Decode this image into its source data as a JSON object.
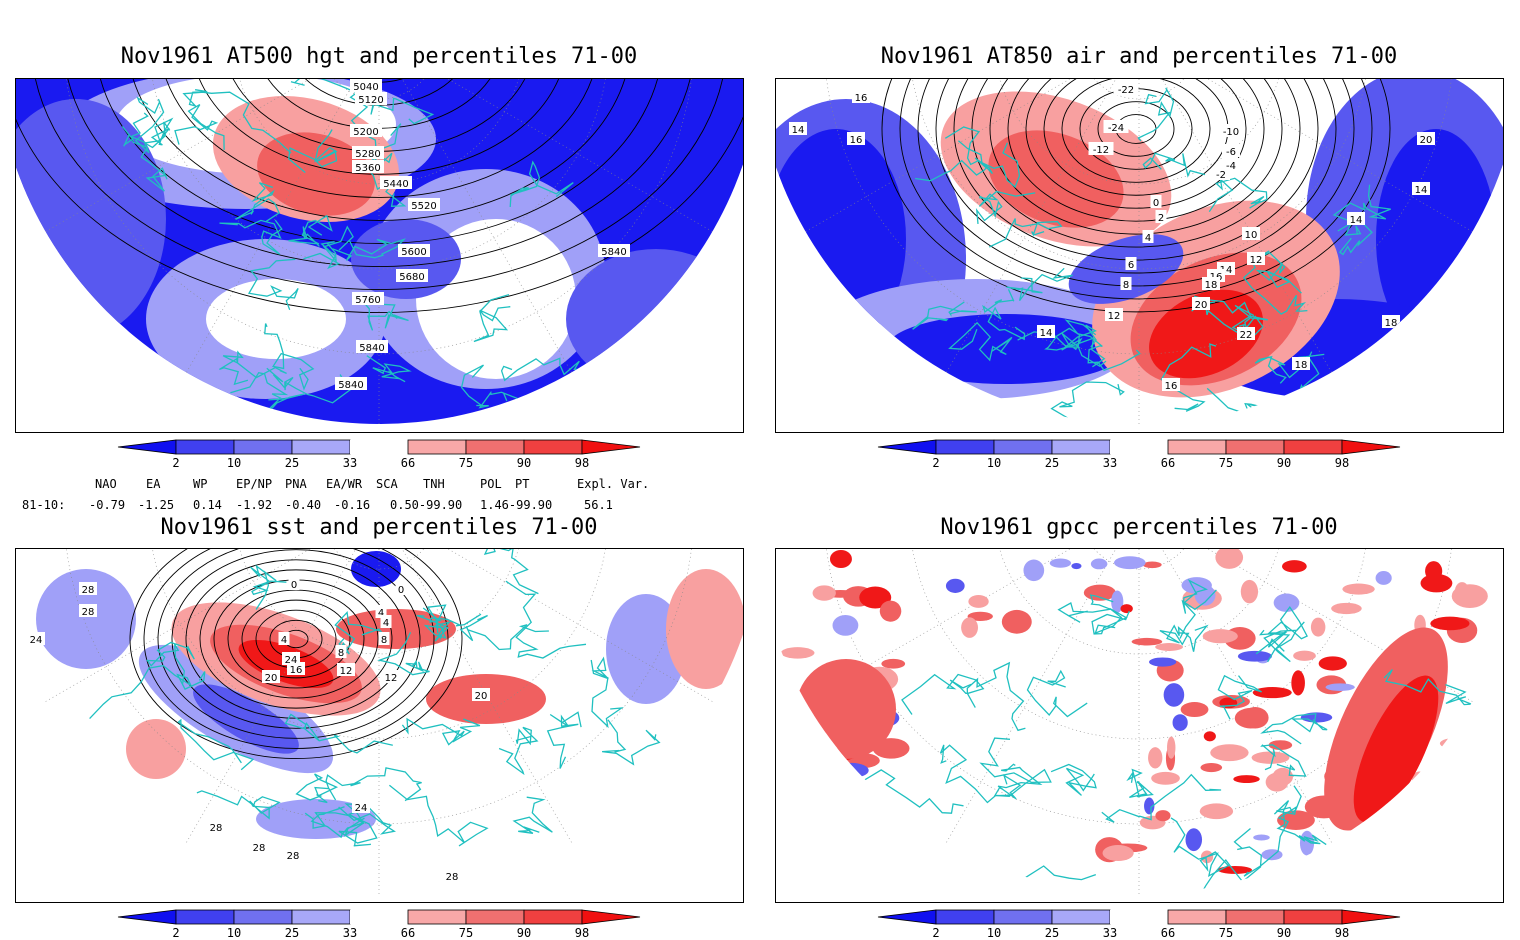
{
  "panels": [
    {
      "id": "hgt500",
      "title": "Nov1961 AT500 hgt and percentiles 71-00",
      "contour_labels": [
        "5040",
        "5120",
        "5200",
        "5280",
        "5360",
        "5440",
        "5520",
        "5600",
        "5680",
        "5760",
        "5840",
        "5840",
        "5840"
      ]
    },
    {
      "id": "air850",
      "title": "Nov1961 AT850 air and percentiles 71-00",
      "contour_labels": [
        "16",
        "16",
        "14",
        "-22",
        "-24",
        "-12",
        "-10",
        "-6",
        "-4",
        "-2",
        "0",
        "2",
        "4",
        "6",
        "8",
        "10",
        "12",
        "14",
        "16",
        "18",
        "20",
        "22",
        "12",
        "14",
        "16",
        "18",
        "20",
        "14",
        "14",
        "18"
      ]
    },
    {
      "id": "sst",
      "title": "Nov1961 sst and percentiles 71-00",
      "contour_labels": [
        "28",
        "28",
        "24",
        "24",
        "0",
        "0",
        "4",
        "4",
        "4",
        "8",
        "8",
        "12",
        "12",
        "16",
        "20",
        "20",
        "24",
        "28",
        "28",
        "28",
        "28"
      ]
    },
    {
      "id": "gpcc",
      "title": "Nov1961 gpcc percentiles 71-00",
      "contour_labels": []
    }
  ],
  "colorbar": {
    "ticks": [
      "2",
      "10",
      "25",
      "33",
      "66",
      "75",
      "90",
      "98"
    ],
    "colors": [
      "#1010f0",
      "#4040f0",
      "#7070f0",
      "#a8a8f8",
      "#ffffff",
      "#f8a8a8",
      "#f07070",
      "#f04040",
      "#f01010"
    ]
  },
  "indices": {
    "header": [
      "NAO",
      "EA",
      "WP",
      "EP/NP",
      "PNA",
      "EA/WR",
      "SCA",
      "TNH",
      "POL",
      "PT",
      "Expl. Var."
    ],
    "row_label": "81-10:",
    "values": [
      "-0.79",
      "-1.25",
      "0.14",
      "-1.92",
      "-0.40",
      "-0.16",
      "0.50-99.90",
      "1.46-99.90",
      "56.1"
    ]
  },
  "style": {
    "coast_color": "#20c0c0",
    "blue_strong": "#1a1af0",
    "blue_mid": "#5858f0",
    "blue_light": "#a0a0f8",
    "red_light": "#f8a0a0",
    "red_mid": "#f06060",
    "red_strong": "#f01818"
  }
}
